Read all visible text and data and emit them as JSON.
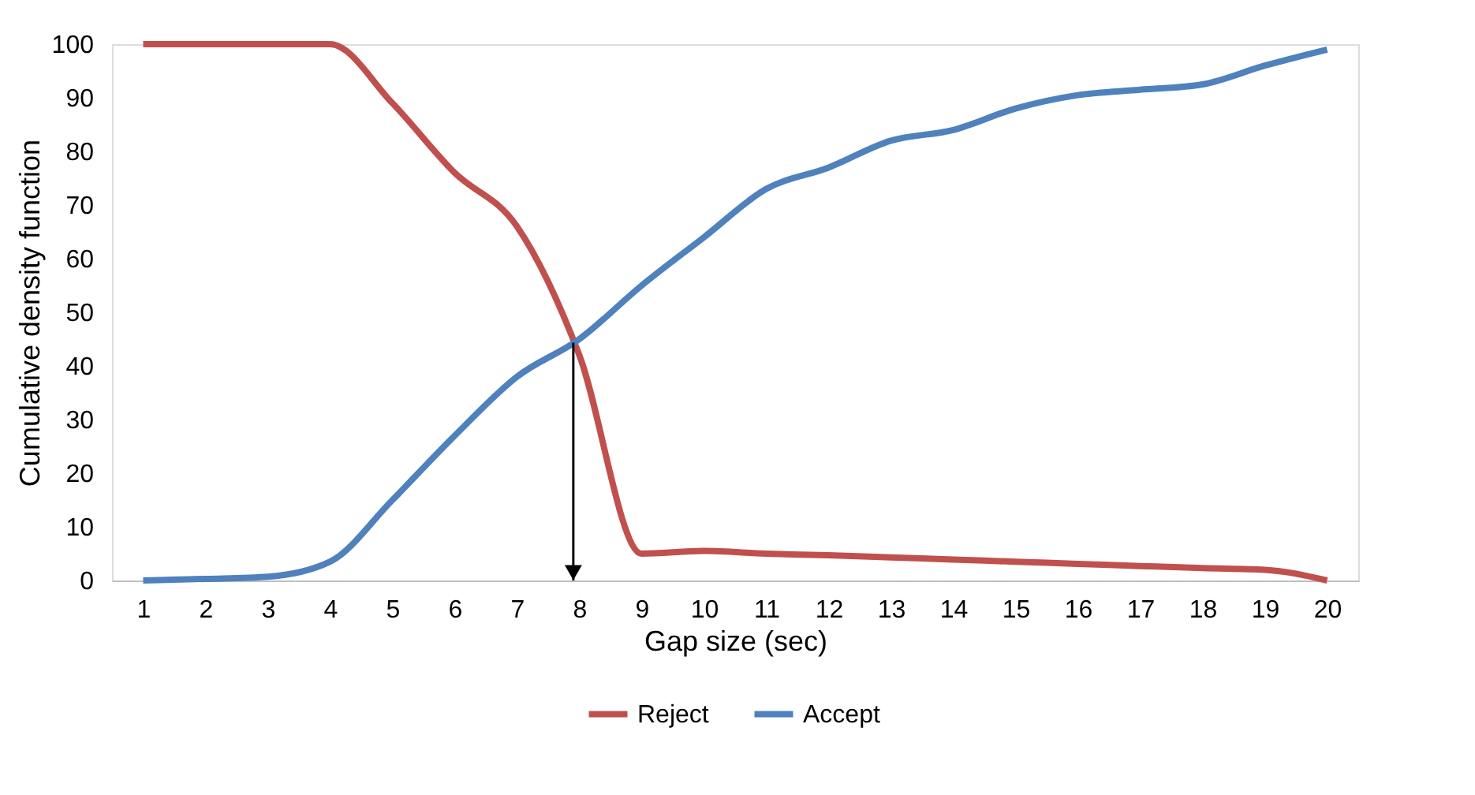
{
  "chart_data": {
    "type": "line",
    "xlabel": "Gap size (sec)",
    "ylabel": "Cumulative density function",
    "x": [
      1,
      2,
      3,
      4,
      5,
      6,
      7,
      8,
      9,
      10,
      11,
      12,
      13,
      14,
      15,
      16,
      17,
      18,
      19,
      20
    ],
    "series": [
      {
        "name": "Reject",
        "color": "#c0504d",
        "values": [
          100,
          100,
          100,
          100,
          89,
          76,
          66,
          42,
          5,
          5.5,
          5,
          4.7,
          4.3,
          3.9,
          3.5,
          3.1,
          2.7,
          2.3,
          2,
          0
        ]
      },
      {
        "name": "Accept",
        "color": "#4f81bd",
        "values": [
          0,
          0.3,
          0.7,
          3.5,
          15,
          27,
          38,
          45,
          55,
          64,
          73,
          77,
          82,
          84,
          88,
          90.5,
          91.5,
          92.5,
          96,
          99
        ]
      }
    ],
    "xlim": [
      0.5,
      20.5
    ],
    "xticks": [
      1,
      2,
      3,
      4,
      5,
      6,
      7,
      8,
      9,
      10,
      11,
      12,
      13,
      14,
      15,
      16,
      17,
      18,
      19,
      20
    ],
    "ylim": [
      0,
      100
    ],
    "yticks": [
      0,
      10,
      20,
      30,
      40,
      50,
      60,
      70,
      80,
      90,
      100
    ],
    "grid": false,
    "legend": "bottom",
    "marker": "none",
    "line_style": "solid"
  }
}
